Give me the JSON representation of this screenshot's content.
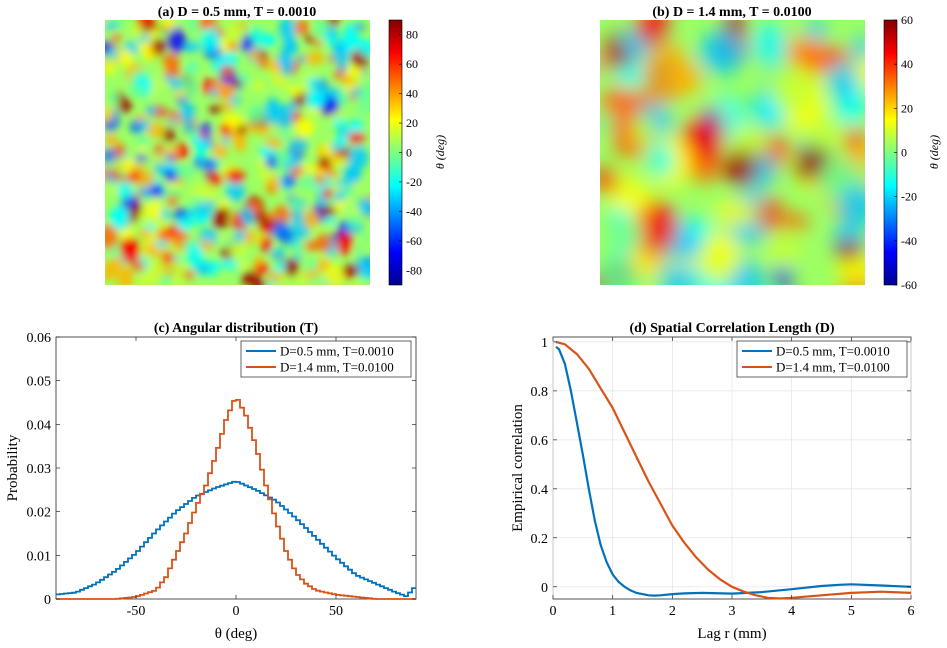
{
  "chart_data": [
    {
      "type": "heatmap",
      "title": "(a) D = 0.5 mm, T = 0.0010",
      "colorbar": {
        "label": "θ (deg)",
        "ticks": [
          -80,
          -60,
          -40,
          -20,
          0,
          20,
          40,
          60,
          80
        ],
        "tick_labels": [
          "-80",
          "-60",
          "-40",
          "-20",
          "0",
          "20",
          "40",
          "60",
          "80"
        ],
        "lim": [
          -90,
          90
        ],
        "colormap": "jet"
      },
      "field_description": "random orientation field, fine texture"
    },
    {
      "type": "heatmap",
      "title": "(b) D = 1.4 mm, T = 0.0100",
      "colorbar": {
        "label": "θ (deg)",
        "ticks": [
          -60,
          -40,
          -20,
          0,
          20,
          40,
          60
        ],
        "tick_labels": [
          "-60",
          "-40",
          "-20",
          "0",
          "20",
          "40",
          "60"
        ],
        "lim": [
          -60,
          60
        ],
        "colormap": "jet"
      },
      "field_description": "random orientation field, coarse texture"
    },
    {
      "type": "line",
      "style": "stairs",
      "title": "(c) Angular distribution (T)",
      "xlabel": "θ (deg)",
      "ylabel": "Probability",
      "xlim": [
        -90,
        90
      ],
      "ylim": [
        0,
        0.06
      ],
      "xticks": [
        -50,
        0,
        50
      ],
      "xtick_labels": [
        "-50",
        "0",
        "50"
      ],
      "yticks": [
        0,
        0.01,
        0.02,
        0.03,
        0.04,
        0.05,
        0.06
      ],
      "ytick_labels": [
        "0",
        "0.01",
        "0.02",
        "0.03",
        "0.04",
        "0.05",
        "0.06"
      ],
      "grid": false,
      "legend": "top-right",
      "bin_width": 2,
      "series": [
        {
          "name": "D=0.5 mm, T=0.0010",
          "color": "#0072BD",
          "points": [
            [
              -90,
              0.001
            ],
            [
              -80,
              0.0015
            ],
            [
              -70,
              0.0035
            ],
            [
              -60,
              0.0065
            ],
            [
              -50,
              0.0105
            ],
            [
              -40,
              0.0155
            ],
            [
              -30,
              0.02
            ],
            [
              -20,
              0.0235
            ],
            [
              -10,
              0.0255
            ],
            [
              0,
              0.027
            ],
            [
              10,
              0.025
            ],
            [
              20,
              0.0225
            ],
            [
              30,
              0.0185
            ],
            [
              40,
              0.014
            ],
            [
              50,
              0.0095
            ],
            [
              60,
              0.0055
            ],
            [
              70,
              0.0035
            ],
            [
              80,
              0.0015
            ],
            [
              86,
              0.0005
            ],
            [
              88,
              0.0025
            ],
            [
              90,
              0.0025
            ]
          ]
        },
        {
          "name": "D=1.4 mm, T=0.0100",
          "color": "#D95319",
          "points": [
            [
              -90,
              0
            ],
            [
              -60,
              0
            ],
            [
              -50,
              0.0005
            ],
            [
              -40,
              0.002
            ],
            [
              -35,
              0.005
            ],
            [
              -30,
              0.01
            ],
            [
              -25,
              0.015
            ],
            [
              -20,
              0.021
            ],
            [
              -15,
              0.026
            ],
            [
              -10,
              0.033
            ],
            [
              -5,
              0.041
            ],
            [
              0,
              0.0465
            ],
            [
              5,
              0.042
            ],
            [
              10,
              0.035
            ],
            [
              15,
              0.026
            ],
            [
              20,
              0.018
            ],
            [
              25,
              0.011
            ],
            [
              30,
              0.006
            ],
            [
              35,
              0.0035
            ],
            [
              40,
              0.002
            ],
            [
              50,
              0.001
            ],
            [
              60,
              0.0005
            ],
            [
              70,
              0
            ],
            [
              90,
              0
            ]
          ]
        }
      ]
    },
    {
      "type": "line",
      "title": "(d) Spatial Correlation Length (D)",
      "xlabel": "Lag r (mm)",
      "ylabel": "Empirical correlation",
      "xlim": [
        0,
        6
      ],
      "ylim": [
        -0.05,
        1.02
      ],
      "xticks": [
        0,
        1,
        2,
        3,
        4,
        5,
        6
      ],
      "xtick_labels": [
        "0",
        "1",
        "2",
        "3",
        "4",
        "5",
        "6"
      ],
      "yticks": [
        0,
        0.2,
        0.4,
        0.6,
        0.8,
        1
      ],
      "ytick_labels": [
        "0",
        "0.2",
        "0.4",
        "0.6",
        "0.8",
        "1"
      ],
      "grid": true,
      "legend": "top-right",
      "series": [
        {
          "name": "D=0.5 mm, T=0.0010",
          "color": "#0072BD",
          "x": [
            0.05,
            0.1,
            0.2,
            0.3,
            0.4,
            0.5,
            0.6,
            0.7,
            0.8,
            0.9,
            1.0,
            1.1,
            1.2,
            1.3,
            1.4,
            1.5,
            1.6,
            1.7,
            1.8,
            2.0,
            2.2,
            2.5,
            3.0,
            3.5,
            4.0,
            4.5,
            4.8,
            5.0,
            5.5,
            6.0
          ],
          "y": [
            0.98,
            0.97,
            0.91,
            0.8,
            0.67,
            0.54,
            0.4,
            0.27,
            0.17,
            0.1,
            0.05,
            0.02,
            0.0,
            -0.015,
            -0.025,
            -0.03,
            -0.035,
            -0.036,
            -0.035,
            -0.03,
            -0.027,
            -0.025,
            -0.028,
            -0.022,
            -0.01,
            0.003,
            0.008,
            0.01,
            0.005,
            0.0
          ]
        },
        {
          "name": "D=1.4 mm, T=0.0100",
          "color": "#D95319",
          "x": [
            0.05,
            0.2,
            0.4,
            0.6,
            0.8,
            1.0,
            1.2,
            1.4,
            1.6,
            1.8,
            2.0,
            2.2,
            2.4,
            2.6,
            2.8,
            3.0,
            3.2,
            3.4,
            3.6,
            3.8,
            4.0,
            4.5,
            5.0,
            5.5,
            6.0
          ],
          "y": [
            1.0,
            0.99,
            0.95,
            0.89,
            0.81,
            0.73,
            0.63,
            0.53,
            0.43,
            0.34,
            0.25,
            0.18,
            0.12,
            0.07,
            0.03,
            0.0,
            -0.02,
            -0.035,
            -0.045,
            -0.048,
            -0.045,
            -0.035,
            -0.025,
            -0.02,
            -0.025
          ]
        }
      ]
    }
  ]
}
